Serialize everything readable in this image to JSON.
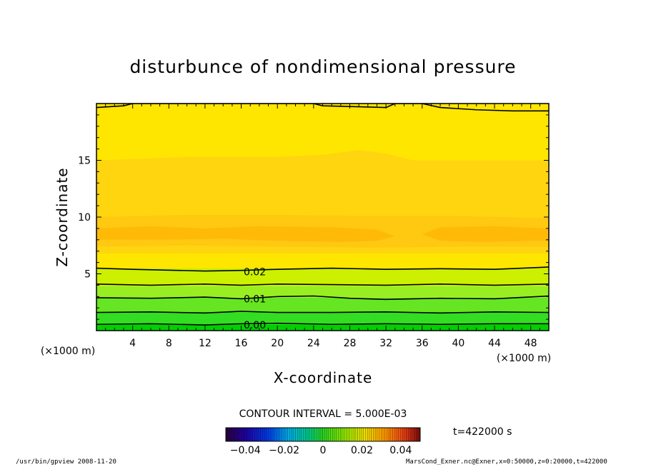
{
  "chart_data": {
    "type": "contour",
    "title": "disturbunce of nondimensional pressure",
    "xlabel": "X-coordinate",
    "ylabel": "Z-coordinate",
    "x_unit": "(×1000 m)",
    "y_unit": "(×1000 m)",
    "xlim": [
      0,
      50
    ],
    "ylim": [
      0,
      20
    ],
    "x_ticks": [
      4,
      8,
      12,
      16,
      20,
      24,
      28,
      32,
      36,
      40,
      44,
      48
    ],
    "y_ticks": [
      5,
      10,
      15
    ],
    "contour_interval_text": "CONTOUR INTERVAL = 5.000E-03",
    "contour_labels": [
      {
        "text": "0.02",
        "x": 17.5,
        "z": 5.2
      },
      {
        "text": "0.01",
        "x": 17.5,
        "z": 2.8
      },
      {
        "text": "0.00",
        "x": 17.5,
        "z": 0.5
      }
    ],
    "contour_lines": [
      {
        "level": 0.0,
        "points": [
          [
            0,
            0.55
          ],
          [
            6,
            0.6
          ],
          [
            12,
            0.5
          ],
          [
            16,
            0.6
          ],
          [
            20,
            0.65
          ],
          [
            26,
            0.55
          ],
          [
            32,
            0.6
          ],
          [
            38,
            0.55
          ],
          [
            44,
            0.6
          ],
          [
            50,
            0.6
          ]
        ]
      },
      {
        "level": 0.005,
        "points": [
          [
            0,
            1.6
          ],
          [
            6,
            1.65
          ],
          [
            12,
            1.55
          ],
          [
            16,
            1.7
          ],
          [
            20,
            1.6
          ],
          [
            26,
            1.6
          ],
          [
            32,
            1.65
          ],
          [
            38,
            1.55
          ],
          [
            44,
            1.65
          ],
          [
            50,
            1.6
          ]
        ]
      },
      {
        "level": 0.01,
        "points": [
          [
            0,
            2.9
          ],
          [
            6,
            2.85
          ],
          [
            12,
            2.95
          ],
          [
            16,
            2.8
          ],
          [
            20,
            3.0
          ],
          [
            24,
            3.05
          ],
          [
            28,
            2.85
          ],
          [
            32,
            2.75
          ],
          [
            38,
            2.85
          ],
          [
            44,
            2.8
          ],
          [
            50,
            3.05
          ]
        ]
      },
      {
        "level": 0.015,
        "points": [
          [
            0,
            4.1
          ],
          [
            6,
            4.0
          ],
          [
            12,
            4.1
          ],
          [
            16,
            4.0
          ],
          [
            20,
            4.1
          ],
          [
            26,
            4.05
          ],
          [
            32,
            4.0
          ],
          [
            38,
            4.1
          ],
          [
            44,
            4.0
          ],
          [
            50,
            4.1
          ]
        ]
      },
      {
        "level": 0.02,
        "points": [
          [
            0,
            5.5
          ],
          [
            4,
            5.4
          ],
          [
            12,
            5.25
          ],
          [
            16,
            5.3
          ],
          [
            20,
            5.4
          ],
          [
            26,
            5.5
          ],
          [
            32,
            5.4
          ],
          [
            38,
            5.45
          ],
          [
            44,
            5.4
          ],
          [
            50,
            5.6
          ]
        ]
      },
      {
        "level": 0.025,
        "points": [
          [
            0,
            19.65
          ],
          [
            3,
            19.8
          ],
          [
            4,
            20
          ],
          [
            24,
            20
          ],
          [
            25,
            19.8
          ],
          [
            32,
            19.65
          ],
          [
            33,
            20
          ],
          [
            36,
            20
          ],
          [
            38,
            19.65
          ],
          [
            42,
            19.45
          ],
          [
            46,
            19.35
          ],
          [
            50,
            19.35
          ]
        ]
      }
    ],
    "filled_bands": [
      {
        "color": "#00d000",
        "points": [
          [
            0,
            0
          ],
          [
            50,
            0
          ],
          [
            50,
            0.5
          ],
          [
            0,
            0.5
          ]
        ]
      },
      {
        "color": "#33dd22",
        "points": [
          [
            0,
            0.5
          ],
          [
            50,
            0.5
          ],
          [
            50,
            1.6
          ],
          [
            0,
            1.6
          ]
        ]
      },
      {
        "color": "#66e622",
        "points": [
          [
            0,
            1.6
          ],
          [
            50,
            1.6
          ],
          [
            50,
            2.9
          ],
          [
            0,
            2.9
          ]
        ]
      },
      {
        "color": "#99ee22",
        "points": [
          [
            0,
            2.9
          ],
          [
            50,
            2.9
          ],
          [
            50,
            3.9
          ],
          [
            0,
            3.9
          ]
        ]
      },
      {
        "color": "#ccf000",
        "points": [
          [
            0,
            3.9
          ],
          [
            50,
            3.9
          ],
          [
            50,
            5.5
          ],
          [
            0,
            5.5
          ]
        ]
      },
      {
        "color": "#ffe600",
        "points": [
          [
            0,
            5.5
          ],
          [
            50,
            5.5
          ],
          [
            50,
            20
          ],
          [
            0,
            20
          ]
        ]
      },
      {
        "color": "#ffd510",
        "points": [
          [
            0,
            6.8
          ],
          [
            50,
            6.8
          ],
          [
            50,
            15
          ],
          [
            35,
            15
          ],
          [
            32,
            15.6
          ],
          [
            29,
            15.9
          ],
          [
            25,
            15.5
          ],
          [
            20,
            15.3
          ],
          [
            10,
            15.3
          ],
          [
            0,
            15
          ]
        ]
      },
      {
        "color": "#ffc811",
        "points": [
          [
            0,
            7.4
          ],
          [
            10,
            7.5
          ],
          [
            20,
            7.4
          ],
          [
            30,
            7.3
          ],
          [
            40,
            7.4
          ],
          [
            50,
            7.4
          ],
          [
            50,
            9.9
          ],
          [
            40,
            10.1
          ],
          [
            30,
            10.1
          ],
          [
            20,
            10.2
          ],
          [
            10,
            10.2
          ],
          [
            0,
            10.0
          ]
        ]
      },
      {
        "color": "#ffba08",
        "points": [
          [
            0,
            8.0
          ],
          [
            8,
            8.0
          ],
          [
            14,
            8.1
          ],
          [
            20,
            7.9
          ],
          [
            27,
            7.8
          ],
          [
            31,
            7.9
          ],
          [
            33,
            8.3
          ],
          [
            31,
            8.9
          ],
          [
            26,
            9.1
          ],
          [
            18,
            9.2
          ],
          [
            12,
            9.0
          ],
          [
            6,
            9.2
          ],
          [
            0,
            9.0
          ]
        ]
      },
      {
        "color": "#ffba08",
        "points": [
          [
            36,
            8.5
          ],
          [
            38,
            7.9
          ],
          [
            43,
            7.8
          ],
          [
            48,
            7.9
          ],
          [
            50,
            7.9
          ],
          [
            50,
            9.0
          ],
          [
            44,
            9.2
          ],
          [
            38,
            9.1
          ]
        ]
      }
    ],
    "colorbar": {
      "ticks": [
        -0.04,
        -0.02,
        0,
        0.02,
        0.04
      ],
      "tick_labels": [
        "−0.04",
        "−0.02",
        "0",
        "0.02",
        "0.04"
      ],
      "range": [
        -0.05,
        0.05
      ]
    },
    "time_label": "t=422000 s"
  },
  "footer": {
    "left": "/usr/bin/gpview   2008-11-20",
    "right": "MarsCond_Exner.nc@Exner,x=0:50000,z=0:20000,t=422000"
  }
}
